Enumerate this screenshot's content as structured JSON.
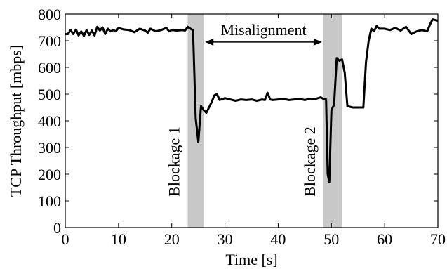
{
  "chart_data": {
    "type": "line",
    "xlabel": "Time [s]",
    "ylabel": "TCP Throughput [mbps]",
    "xlim": [
      0,
      70
    ],
    "ylim": [
      0,
      800
    ],
    "xticks": [
      0,
      10,
      20,
      30,
      40,
      50,
      60,
      70
    ],
    "yticks": [
      0,
      100,
      200,
      300,
      400,
      500,
      600,
      700,
      800
    ],
    "grid": false,
    "legend": "none",
    "line_color": "#000000",
    "shade_color": "#c8c8c8",
    "shaded_regions": [
      {
        "x0": 23.0,
        "x1": 26.0,
        "label": "Blockage 1"
      },
      {
        "x0": 48.5,
        "x1": 52.0,
        "label": "Blockage 2"
      }
    ],
    "annotations": [
      {
        "text": "Misalignment",
        "type": "double-arrow",
        "x0": 26.0,
        "x1": 48.5,
        "y": 695
      }
    ],
    "series": [
      {
        "x": [
          0,
          0.5,
          1,
          1.5,
          2,
          2.5,
          3,
          3.5,
          4,
          4.5,
          5,
          5.5,
          6,
          6.5,
          7,
          7.5,
          8,
          8.5,
          9,
          9.5,
          10,
          11,
          12,
          13,
          14,
          15,
          15.5,
          16,
          17,
          18,
          19,
          19.5,
          20,
          21,
          22,
          22.5,
          23,
          23.5,
          24,
          24.5,
          25,
          25.5,
          26,
          26.5,
          27,
          27.5,
          28,
          28.5,
          29,
          30,
          31,
          32,
          33,
          34,
          35,
          36,
          37,
          37.5,
          38,
          38.5,
          39,
          40,
          41,
          42,
          43,
          44,
          45,
          46,
          47,
          48,
          48.5,
          49,
          49.3,
          49.6,
          50,
          50.5,
          51,
          51.5,
          52,
          52.5,
          53,
          54,
          55,
          56,
          56.5,
          57,
          57.5,
          58,
          58.5,
          59,
          60,
          61,
          62,
          63,
          64,
          65,
          66,
          67,
          68,
          68.5,
          69,
          70
        ],
        "y": [
          725,
          725,
          740,
          725,
          742,
          720,
          735,
          718,
          740,
          722,
          738,
          720,
          752,
          738,
          750,
          725,
          745,
          735,
          740,
          735,
          748,
          742,
          740,
          732,
          745,
          738,
          730,
          745,
          735,
          740,
          748,
          735,
          740,
          738,
          740,
          738,
          752,
          745,
          740,
          410,
          320,
          455,
          440,
          430,
          450,
          470,
          495,
          500,
          478,
          485,
          480,
          475,
          480,
          478,
          480,
          475,
          480,
          478,
          505,
          480,
          478,
          480,
          482,
          478,
          480,
          482,
          478,
          483,
          482,
          488,
          482,
          480,
          200,
          170,
          440,
          460,
          635,
          625,
          630,
          580,
          455,
          450,
          450,
          450,
          620,
          700,
          745,
          735,
          755,
          745,
          745,
          740,
          748,
          738,
          752,
          725,
          735,
          740,
          735,
          760,
          780,
          775
        ]
      }
    ]
  }
}
